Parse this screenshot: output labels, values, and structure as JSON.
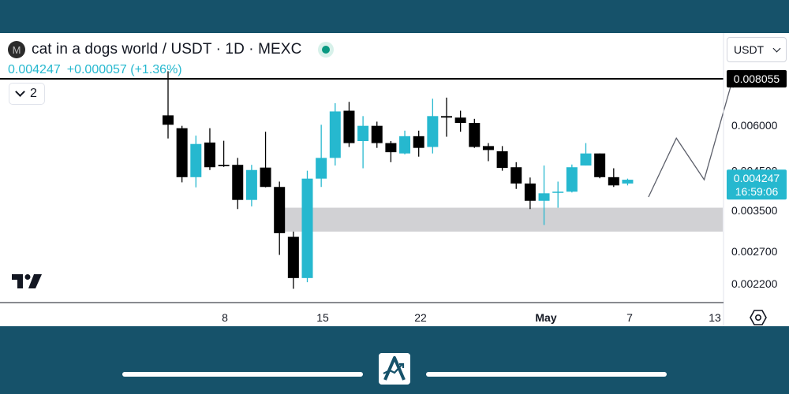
{
  "header": {
    "logo_letter": "M",
    "symbol_title": "cat in a dogs world / USDT · 1D · MEXC",
    "last_price": "0.004247",
    "change": "+0.000057 (+1.36%)",
    "legend_count": "2",
    "currency": "USDT"
  },
  "colors": {
    "up": "#26b8cf",
    "down": "#000000",
    "zone": "#d1d1d4",
    "background": "#16526a",
    "live": "#089981"
  },
  "chart_data": {
    "type": "candlestick",
    "y_axis": {
      "scale": "log",
      "tick_labels": [
        "0.006000",
        "0.004500",
        "0.003500",
        "0.002700",
        "0.002200"
      ],
      "ticks": [
        0.006,
        0.0045,
        0.0035,
        0.0027,
        0.0022
      ]
    },
    "x_axis": {
      "tick_labels": [
        "8",
        "15",
        "22",
        "May",
        "7",
        "13"
      ]
    },
    "candles": [
      {
        "o": 0.00639,
        "h": 0.00845,
        "l": 0.00552,
        "c": 0.00602
      },
      {
        "o": 0.00589,
        "h": 0.00598,
        "l": 0.00418,
        "c": 0.00432
      },
      {
        "o": 0.00432,
        "h": 0.00562,
        "l": 0.00405,
        "c": 0.00533
      },
      {
        "o": 0.00538,
        "h": 0.00589,
        "l": 0.00452,
        "c": 0.0046
      },
      {
        "o": 0.00467,
        "h": 0.00544,
        "l": 0.00461,
        "c": 0.00463
      },
      {
        "o": 0.00467,
        "h": 0.00488,
        "l": 0.00353,
        "c": 0.00374
      },
      {
        "o": 0.00374,
        "h": 0.00467,
        "l": 0.00359,
        "c": 0.00452
      },
      {
        "o": 0.00459,
        "h": 0.00576,
        "l": 0.00405,
        "c": 0.00406
      },
      {
        "o": 0.00406,
        "h": 0.0042,
        "l": 0.00264,
        "c": 0.00303
      },
      {
        "o": 0.00296,
        "h": 0.00306,
        "l": 0.00213,
        "c": 0.00228
      },
      {
        "o": 0.00228,
        "h": 0.0045,
        "l": 0.00222,
        "c": 0.00428
      },
      {
        "o": 0.00428,
        "h": 0.00602,
        "l": 0.00406,
        "c": 0.00488
      },
      {
        "o": 0.00488,
        "h": 0.0069,
        "l": 0.00465,
        "c": 0.00655
      },
      {
        "o": 0.00658,
        "h": 0.00696,
        "l": 0.00523,
        "c": 0.00536
      },
      {
        "o": 0.00543,
        "h": 0.00636,
        "l": 0.00457,
        "c": 0.00598
      },
      {
        "o": 0.00598,
        "h": 0.00614,
        "l": 0.0052,
        "c": 0.00536
      },
      {
        "o": 0.00536,
        "h": 0.00543,
        "l": 0.00475,
        "c": 0.00506
      },
      {
        "o": 0.00502,
        "h": 0.0058,
        "l": 0.00499,
        "c": 0.0056
      },
      {
        "o": 0.0056,
        "h": 0.0058,
        "l": 0.00492,
        "c": 0.0052
      },
      {
        "o": 0.00523,
        "h": 0.0071,
        "l": 0.00502,
        "c": 0.00636
      },
      {
        "o": 0.00636,
        "h": 0.00715,
        "l": 0.00558,
        "c": 0.0063
      },
      {
        "o": 0.0063,
        "h": 0.00658,
        "l": 0.00576,
        "c": 0.00609
      },
      {
        "o": 0.00609,
        "h": 0.00625,
        "l": 0.0052,
        "c": 0.00523
      },
      {
        "o": 0.00526,
        "h": 0.00536,
        "l": 0.00478,
        "c": 0.00513
      },
      {
        "o": 0.00509,
        "h": 0.00526,
        "l": 0.0045,
        "c": 0.00458
      },
      {
        "o": 0.0046,
        "h": 0.00475,
        "l": 0.00401,
        "c": 0.00415
      },
      {
        "o": 0.00415,
        "h": 0.00431,
        "l": 0.00353,
        "c": 0.00372
      },
      {
        "o": 0.00372,
        "h": 0.00465,
        "l": 0.00319,
        "c": 0.0039
      },
      {
        "o": 0.00392,
        "h": 0.0042,
        "l": 0.00356,
        "c": 0.00394
      },
      {
        "o": 0.00394,
        "h": 0.00468,
        "l": 0.00392,
        "c": 0.0046
      },
      {
        "o": 0.00465,
        "h": 0.00536,
        "l": 0.00465,
        "c": 0.00502
      },
      {
        "o": 0.00502,
        "h": 0.00502,
        "l": 0.00429,
        "c": 0.00432
      },
      {
        "o": 0.00432,
        "h": 0.00457,
        "l": 0.00406,
        "c": 0.0041
      },
      {
        "o": 0.00415,
        "h": 0.00428,
        "l": 0.0041,
        "c": 0.00425
      }
    ],
    "horizontal_level": {
      "label": "0.008055",
      "value": 0.008055
    },
    "last_price_label": {
      "price": "0.004247",
      "countdown": "16:59:06",
      "value": 0.004247
    },
    "support_zone": {
      "from": 0.00306,
      "to": 0.00356
    },
    "projection_path": [
      {
        "bar": 34.5,
        "price": 0.00381
      },
      {
        "bar": 36.5,
        "price": 0.00553
      },
      {
        "bar": 38.5,
        "price": 0.00425
      },
      {
        "bar": 40.5,
        "price": 0.00792
      }
    ]
  }
}
